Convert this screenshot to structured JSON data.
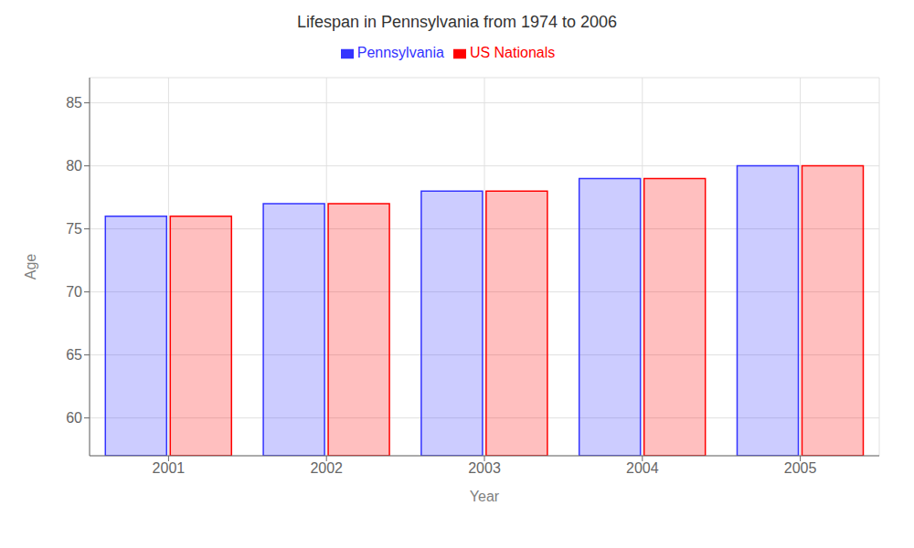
{
  "chart_data": {
    "type": "bar",
    "title": "Lifespan in Pennsylvania from 1974 to 2006",
    "x_label": "Year",
    "y_label": "Age",
    "categories": [
      "2001",
      "2002",
      "2003",
      "2004",
      "2005"
    ],
    "series": [
      {
        "name": "Pennsylvania",
        "color": "#3333ff",
        "values": [
          76,
          77,
          78,
          79,
          80
        ]
      },
      {
        "name": "US Nationals",
        "color": "#ff0000",
        "values": [
          76,
          77,
          78,
          79,
          80
        ]
      }
    ],
    "ylim": [
      57,
      87
    ],
    "yticks": [
      60,
      65,
      70,
      75,
      80,
      85
    ],
    "grid": true,
    "legend": "top"
  }
}
